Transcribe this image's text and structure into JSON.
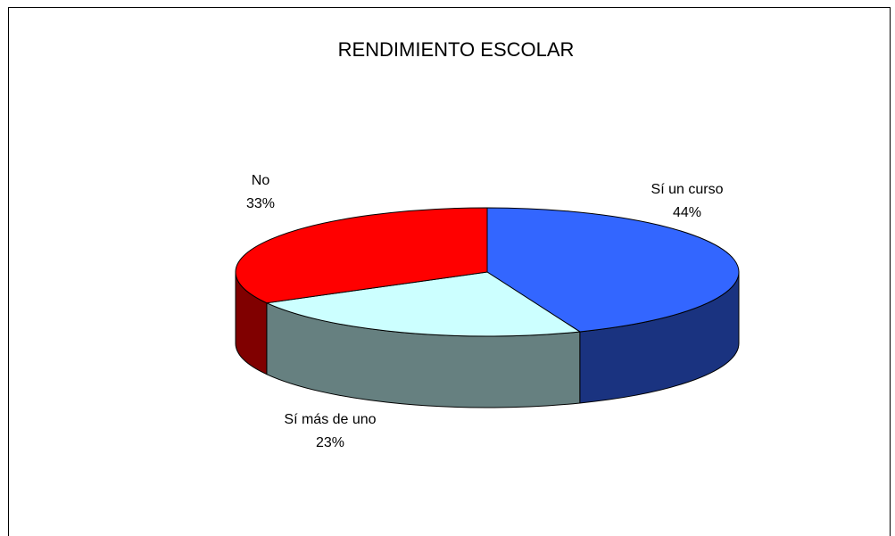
{
  "chart_data": {
    "type": "pie3d",
    "title": "RENDIMIENTO ESCOLAR",
    "categories": [
      "Sí un curso",
      "Sí más de uno",
      "No"
    ],
    "values": [
      44,
      23,
      33
    ],
    "value_labels": [
      "44%",
      "23%",
      "33%"
    ],
    "colors": [
      "#3366ff",
      "#ccffff",
      "#ff0000"
    ]
  }
}
